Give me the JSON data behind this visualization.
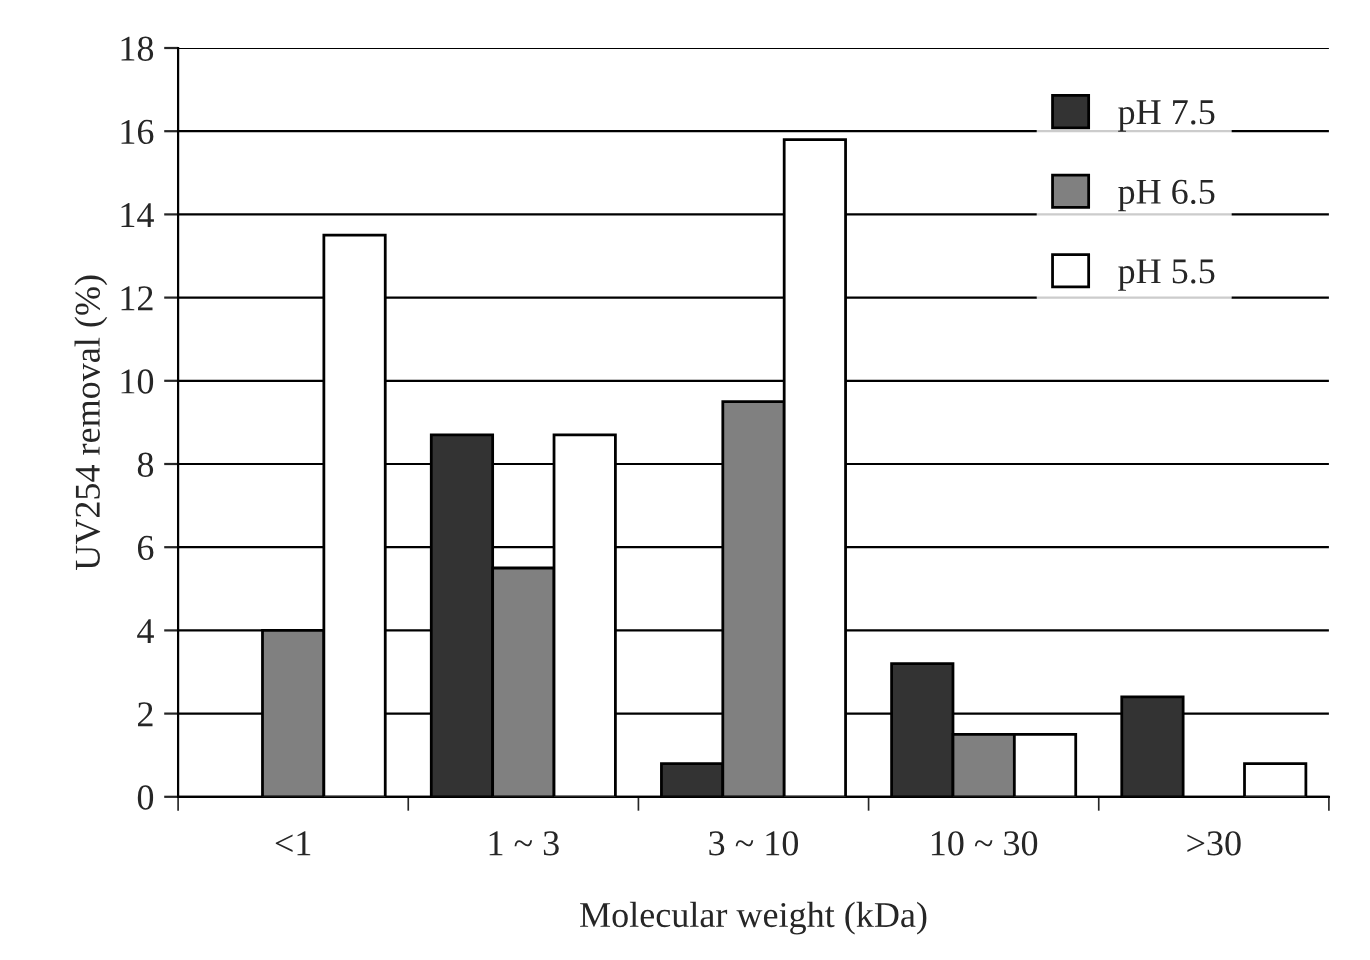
{
  "chart_data": {
    "type": "bar",
    "xlabel": "Molecular weight (kDa)",
    "ylabel": "UV254 removal (%)",
    "categories": [
      "<1",
      "1 ~ 3",
      "3 ~ 10",
      "10 ~ 30",
      ">30"
    ],
    "series": [
      {
        "name": "pH 7.5",
        "color": "#333333",
        "values": [
          null,
          8.7,
          0.8,
          3.2,
          2.4
        ]
      },
      {
        "name": "pH 6.5",
        "color": "#808080",
        "values": [
          4.0,
          5.5,
          9.5,
          1.5,
          null
        ]
      },
      {
        "name": "pH 5.5",
        "color": "#ffffff",
        "values": [
          13.5,
          8.7,
          15.8,
          1.5,
          0.8
        ]
      }
    ],
    "ylim": [
      0,
      18
    ],
    "yticks": [
      0,
      2,
      4,
      6,
      8,
      10,
      12,
      14,
      16,
      18
    ],
    "grid": "y",
    "legend": "top right"
  }
}
